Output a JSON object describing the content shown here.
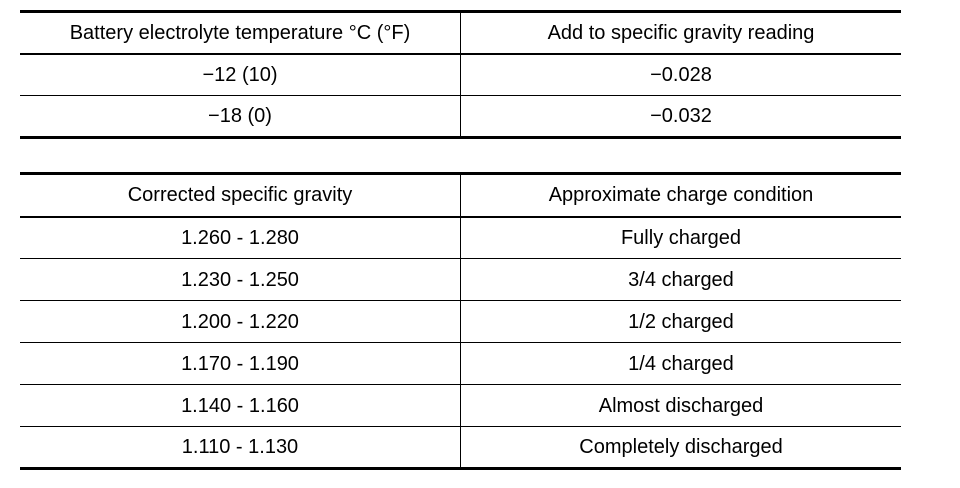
{
  "temperature_table": {
    "headers": [
      "Battery electrolyte temperature °C (°F)",
      "Add to specific gravity reading"
    ],
    "rows": [
      [
        "−12 (10)",
        "−0.028"
      ],
      [
        "−18 (0)",
        "−0.032"
      ]
    ]
  },
  "charge_table": {
    "headers": [
      "Corrected specific gravity",
      "Approximate charge condition"
    ],
    "rows": [
      [
        "1.260 - 1.280",
        "Fully charged"
      ],
      [
        "1.230 - 1.250",
        "3/4 charged"
      ],
      [
        "1.200 - 1.220",
        "1/2 charged"
      ],
      [
        "1.170 - 1.190",
        "1/4 charged"
      ],
      [
        "1.140 - 1.160",
        "Almost discharged"
      ],
      [
        "1.110 - 1.130",
        "Completely discharged"
      ]
    ]
  }
}
